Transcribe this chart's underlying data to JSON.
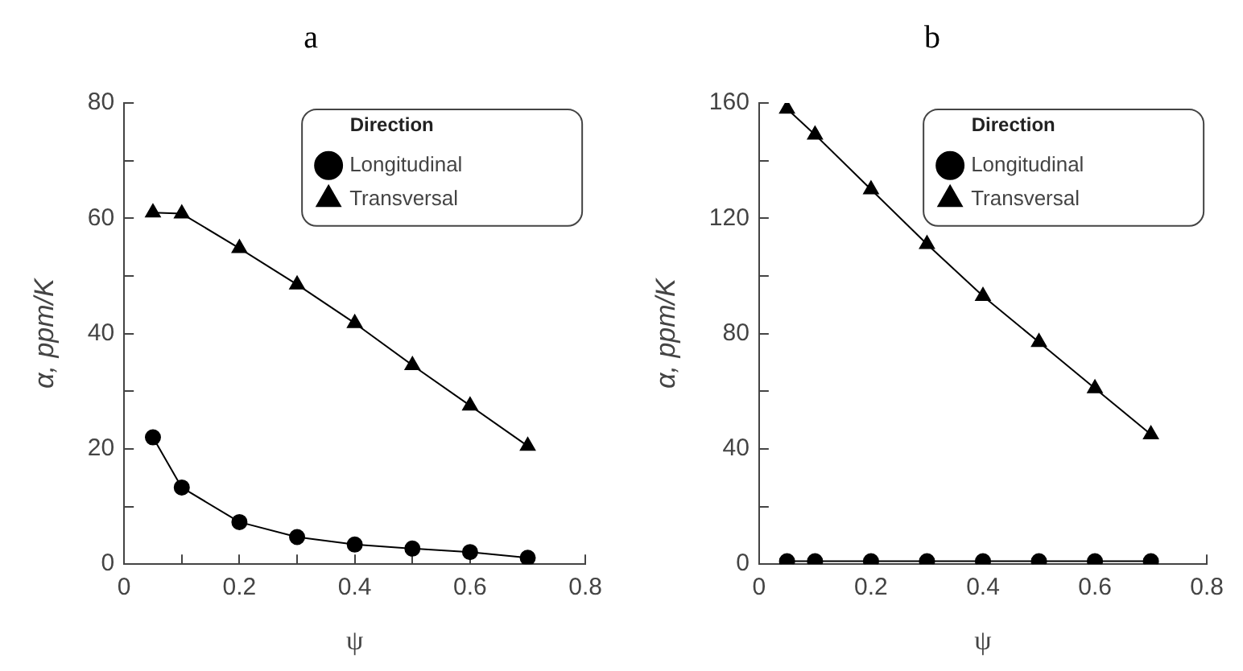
{
  "chart_data": [
    {
      "type": "line",
      "title": "a",
      "xlabel": "ψ",
      "ylabel": "α, ppm/K",
      "legend_title": "Direction",
      "legend": "top right",
      "grid": false,
      "xlim": [
        0,
        0.8
      ],
      "xticks": [
        0,
        {
          "value": 0.1,
          "label": null
        },
        0.2,
        {
          "value": 0.3,
          "label": null
        },
        0.4,
        {
          "value": 0.5,
          "label": null
        },
        0.6,
        {
          "value": 0.7,
          "label": null
        },
        0.8
      ],
      "ylim": [
        0,
        80
      ],
      "yticks": [
        0,
        {
          "value": 10,
          "label": null
        },
        20,
        {
          "value": 30,
          "label": null
        },
        40,
        {
          "value": 50,
          "label": null
        },
        60,
        {
          "value": 70,
          "label": null
        },
        80
      ],
      "x": [
        0.05,
        0.1,
        0.2,
        0.3,
        0.4,
        0.5,
        0.6,
        0.7
      ],
      "series": [
        {
          "name": "Longitudinal",
          "color": "#000000",
          "marker": "circle",
          "values": [
            22,
            13.3,
            7.3,
            4.7,
            3.4,
            2.7,
            2.1,
            1.1
          ]
        },
        {
          "name": "Transversal",
          "color": "#000000",
          "marker": "triangle",
          "values": [
            61,
            60.8,
            54.8,
            48.5,
            41.8,
            34.5,
            27.5,
            20.5
          ]
        }
      ]
    },
    {
      "type": "line",
      "title": "b",
      "xlabel": "ψ",
      "ylabel": "α, ppm/K",
      "legend_title": "Direction",
      "legend": "top right",
      "grid": false,
      "xlim": [
        0,
        0.8
      ],
      "xticks": [
        0,
        {
          "value": 0.1,
          "label": null
        },
        0.2,
        {
          "value": 0.3,
          "label": null
        },
        0.4,
        {
          "value": 0.5,
          "label": null
        },
        0.6,
        {
          "value": 0.7,
          "label": null
        },
        0.8
      ],
      "ylim": [
        0,
        160
      ],
      "yticks": [
        0,
        {
          "value": 20,
          "label": null
        },
        40,
        {
          "value": 60,
          "label": null
        },
        80,
        {
          "value": 100,
          "label": null
        },
        120,
        {
          "value": 140,
          "label": null
        },
        160
      ],
      "x": [
        0.05,
        0.1,
        0.2,
        0.3,
        0.4,
        0.5,
        0.6,
        0.7
      ],
      "series": [
        {
          "name": "Longitudinal",
          "color": "#000000",
          "marker": "circle",
          "values": [
            1,
            1,
            1,
            1,
            1,
            1,
            1,
            1
          ]
        },
        {
          "name": "Transversal",
          "color": "#000000",
          "marker": "triangle",
          "values": [
            158,
            149,
            130,
            111,
            93,
            77,
            61,
            45
          ]
        }
      ]
    }
  ]
}
